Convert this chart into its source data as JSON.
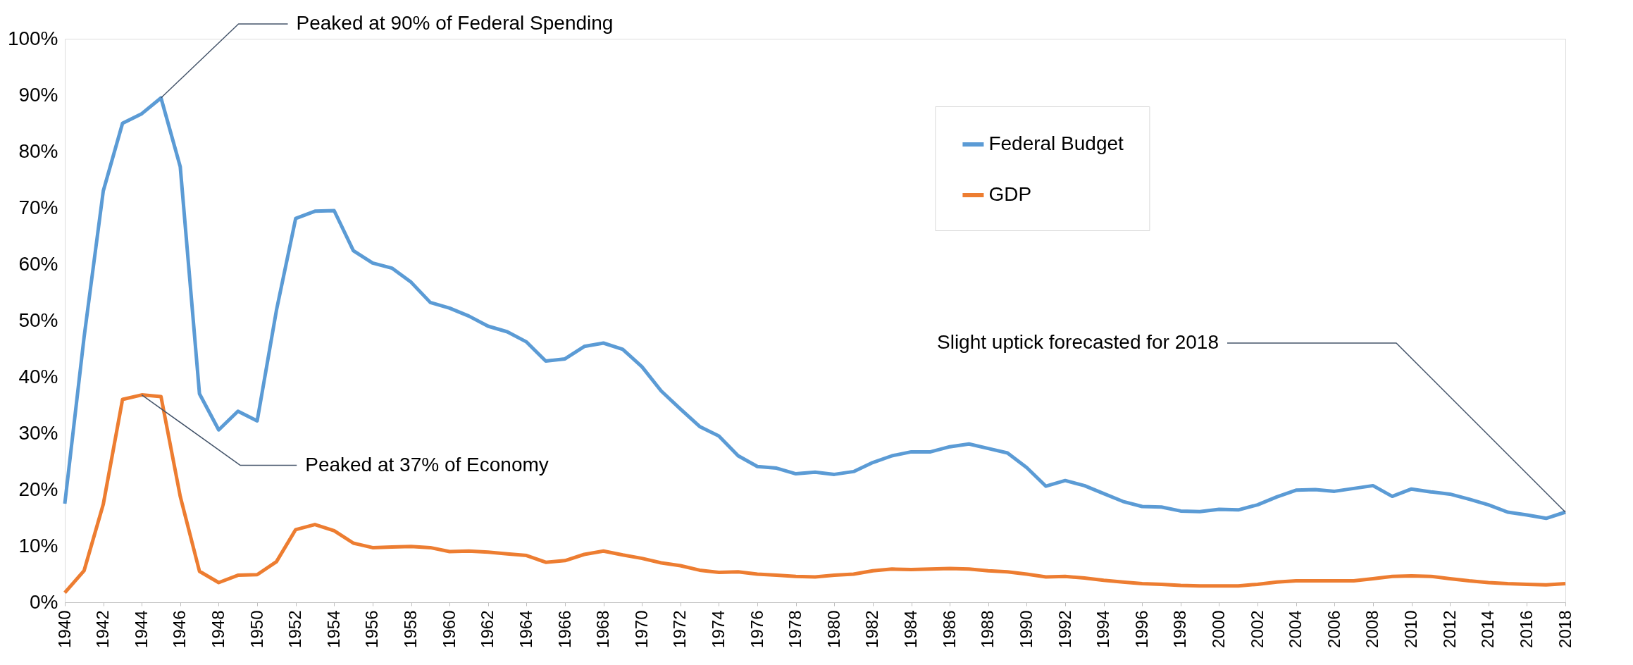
{
  "chart_data": {
    "type": "line",
    "x": [
      1940,
      1941,
      1942,
      1943,
      1944,
      1945,
      1946,
      1947,
      1948,
      1949,
      1950,
      1951,
      1952,
      1953,
      1954,
      1955,
      1956,
      1957,
      1958,
      1959,
      1960,
      1961,
      1962,
      1963,
      1964,
      1965,
      1966,
      1967,
      1968,
      1969,
      1970,
      1971,
      1972,
      1973,
      1974,
      1975,
      1976,
      1977,
      1978,
      1979,
      1980,
      1981,
      1982,
      1983,
      1984,
      1985,
      1986,
      1987,
      1988,
      1989,
      1990,
      1991,
      1992,
      1993,
      1994,
      1995,
      1996,
      1997,
      1998,
      1999,
      2000,
      2001,
      2002,
      2003,
      2004,
      2005,
      2006,
      2007,
      2008,
      2009,
      2010,
      2011,
      2012,
      2013,
      2014,
      2015,
      2016,
      2017,
      2018
    ],
    "series": [
      {
        "name": "Federal Budget",
        "color": "#5b9bd5",
        "values": [
          17.5,
          47,
          73,
          85,
          86.7,
          89.5,
          77.3,
          37,
          30.6,
          33.9,
          32.2,
          51.8,
          68.1,
          69.4,
          69.5,
          62.4,
          60.2,
          59.3,
          56.8,
          53.2,
          52.2,
          50.8,
          49.0,
          48.0,
          46.2,
          42.8,
          43.2,
          45.4,
          46.0,
          44.9,
          41.8,
          37.5,
          34.3,
          31.2,
          29.5,
          26.0,
          24.1,
          23.8,
          22.8,
          23.1,
          22.7,
          23.2,
          24.8,
          26.0,
          26.7,
          26.7,
          27.6,
          28.1,
          27.3,
          26.5,
          23.9,
          20.6,
          21.6,
          20.7,
          19.3,
          17.9,
          17.0,
          16.9,
          16.2,
          16.1,
          16.5,
          16.4,
          17.3,
          18.7,
          19.9,
          20.0,
          19.7,
          20.2,
          20.7,
          18.8,
          20.1,
          19.6,
          19.2,
          18.3,
          17.3,
          16.0,
          15.5,
          14.9,
          16.0
        ]
      },
      {
        "name": "GDP",
        "color": "#ed7d31",
        "values": [
          1.7,
          5.6,
          17.4,
          36.0,
          36.8,
          36.5,
          18.8,
          5.5,
          3.5,
          4.8,
          4.9,
          7.2,
          12.9,
          13.8,
          12.7,
          10.5,
          9.7,
          9.8,
          9.9,
          9.7,
          9.0,
          9.1,
          8.9,
          8.6,
          8.3,
          7.1,
          7.4,
          8.5,
          9.1,
          8.4,
          7.8,
          7.0,
          6.5,
          5.7,
          5.3,
          5.4,
          5.0,
          4.8,
          4.6,
          4.5,
          4.8,
          5.0,
          5.6,
          5.9,
          5.8,
          5.9,
          6.0,
          5.9,
          5.6,
          5.4,
          5.0,
          4.5,
          4.6,
          4.3,
          3.9,
          3.6,
          3.3,
          3.2,
          3.0,
          2.9,
          2.9,
          2.9,
          3.2,
          3.6,
          3.8,
          3.8,
          3.8,
          3.8,
          4.2,
          4.6,
          4.7,
          4.6,
          4.2,
          3.8,
          3.5,
          3.3,
          3.2,
          3.1,
          3.3
        ]
      }
    ],
    "xlim": [
      1940,
      2018
    ],
    "xticks": [
      1940,
      1942,
      1944,
      1946,
      1948,
      1950,
      1952,
      1954,
      1956,
      1958,
      1960,
      1962,
      1964,
      1966,
      1968,
      1970,
      1972,
      1974,
      1976,
      1978,
      1980,
      1982,
      1984,
      1986,
      1988,
      1990,
      1992,
      1994,
      1996,
      1998,
      2000,
      2002,
      2004,
      2006,
      2008,
      2010,
      2012,
      2014,
      2016,
      2018
    ],
    "ylim": [
      0,
      100
    ],
    "yticks": [
      {
        "value": 0,
        "label": "0%"
      },
      {
        "value": 10,
        "label": "10%"
      },
      {
        "value": 20,
        "label": "20%"
      },
      {
        "value": 30,
        "label": "30%"
      },
      {
        "value": 40,
        "label": "40%"
      },
      {
        "value": 50,
        "label": "50%"
      },
      {
        "value": 60,
        "label": "60%"
      },
      {
        "value": 70,
        "label": "70%"
      },
      {
        "value": 80,
        "label": "80%"
      },
      {
        "value": 90,
        "label": "90%"
      },
      {
        "value": 100,
        "label": "100%"
      }
    ],
    "annotations": [
      {
        "text": "Peaked at 90% of Federal Spending",
        "x": 1945,
        "y": 89.5
      },
      {
        "text": "Peaked at 37% of Economy",
        "x": 1944,
        "y": 36.8
      },
      {
        "text": "Slight uptick forecasted for 2018",
        "x": 2018,
        "y": 16.0
      }
    ],
    "legend": "top right",
    "grid": false,
    "line_style": "solid",
    "marker": "none"
  }
}
